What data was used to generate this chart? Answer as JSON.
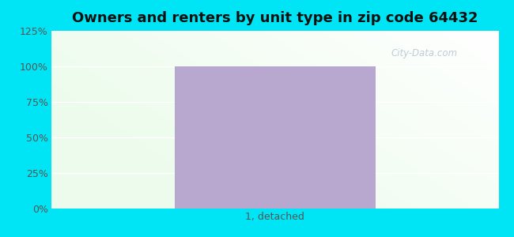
{
  "title": "Owners and renters by unit type in zip code 64432",
  "categories": [
    "1, detached"
  ],
  "values": [
    100
  ],
  "bar_color": "#b8a8d0",
  "ylim": [
    0,
    125
  ],
  "yticks": [
    0,
    25,
    50,
    75,
    100,
    125
  ],
  "ytick_labels": [
    "0%",
    "25%",
    "50%",
    "75%",
    "100%",
    "125%"
  ],
  "title_fontsize": 13,
  "tick_fontsize": 9,
  "xlabel_fontsize": 9,
  "outer_bg_color": "#00e5f5",
  "bar_width": 0.45,
  "watermark": "City-Data.com",
  "grid_color": "#ccddcc",
  "grid_alpha": 0.9
}
